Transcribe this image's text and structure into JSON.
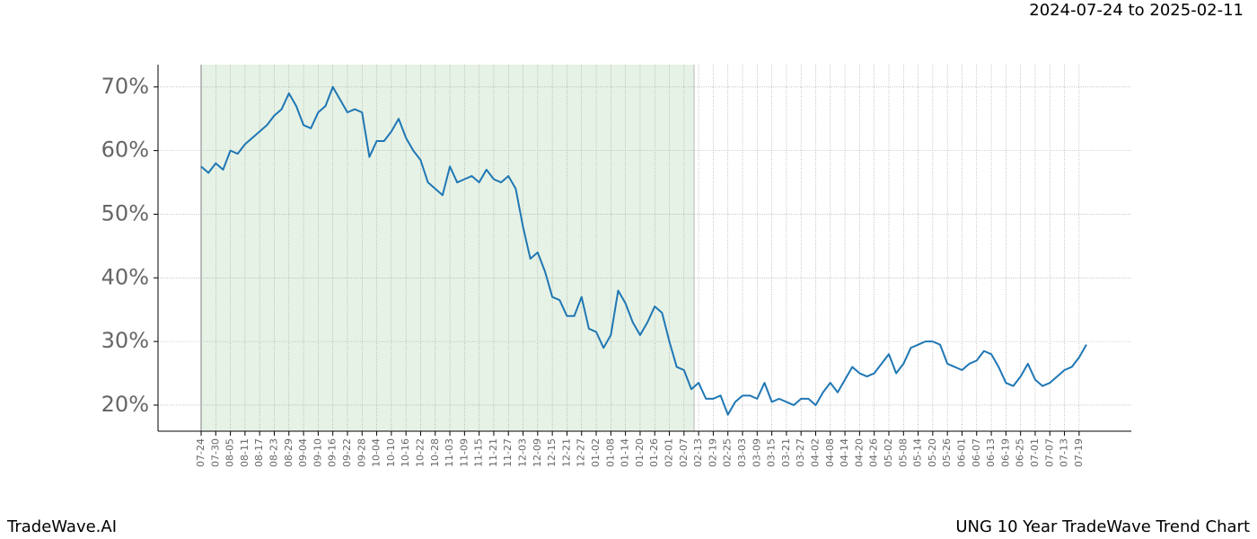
{
  "chart_data": {
    "type": "line",
    "title": "UNG 10 Year TradeWave Trend Chart",
    "subtitle": "2024-07-24 to 2025-02-11",
    "brand": "TradeWave.AI",
    "categories": [
      "07-24",
      null,
      "07-30",
      null,
      "08-05",
      null,
      "08-11",
      null,
      "08-17",
      null,
      "08-23",
      null,
      "08-29",
      null,
      "09-04",
      null,
      "09-10",
      null,
      "09-16",
      null,
      "09-22",
      null,
      "09-28",
      null,
      "10-04",
      null,
      "10-10",
      null,
      "10-16",
      null,
      "10-22",
      null,
      "10-28",
      null,
      "11-03",
      null,
      "11-09",
      null,
      "11-15",
      null,
      "11-21",
      null,
      "11-27",
      null,
      "12-03",
      null,
      "12-09",
      null,
      "12-15",
      null,
      "12-21",
      null,
      "12-27",
      null,
      "01-02",
      null,
      "01-08",
      null,
      "01-14",
      null,
      "01-20",
      null,
      "01-26",
      null,
      "02-01",
      null,
      "02-07",
      null,
      "02-13",
      null,
      "02-19",
      null,
      "02-25",
      null,
      "03-03",
      null,
      "03-09",
      null,
      "03-15",
      null,
      "03-21",
      null,
      "03-27",
      null,
      "04-02",
      null,
      "04-08",
      null,
      "04-14",
      null,
      "04-20",
      null,
      "04-26",
      null,
      "05-02",
      null,
      "05-08",
      null,
      "05-14",
      null,
      "05-20",
      null,
      "05-26",
      null,
      "06-01",
      null,
      "06-07",
      null,
      "06-13",
      null,
      "06-19",
      null,
      "06-25",
      null,
      "07-01",
      null,
      "07-07",
      null,
      "07-13",
      null,
      "07-19",
      null
    ],
    "series": [
      {
        "color": "#1f77b4",
        "values": [
          57.5,
          56.5,
          58,
          57,
          60,
          59.5,
          61,
          62,
          63,
          64,
          65.5,
          66.5,
          69,
          67,
          64,
          63.5,
          66,
          67,
          70,
          68,
          66,
          66.5,
          66,
          59,
          61.5,
          61.5,
          63,
          65,
          62,
          60,
          58.5,
          55,
          54,
          53,
          57.5,
          55,
          55.5,
          56,
          55,
          57,
          55.5,
          55,
          56,
          54,
          48,
          43,
          44,
          41,
          37,
          36.5,
          34,
          34,
          37,
          32,
          31.5,
          29,
          31,
          38,
          36,
          33,
          31,
          33,
          35.5,
          34.5,
          30,
          26,
          25.5,
          22.5,
          23.5,
          21,
          21,
          21.5,
          18.5,
          20.5,
          21.5,
          21.5,
          21,
          23.5,
          20.5,
          21,
          20.5,
          20,
          21,
          21,
          20,
          22,
          23.5,
          22,
          24,
          26,
          25,
          24.5,
          25,
          26.5,
          28,
          25,
          26.5,
          29,
          29.5,
          30,
          30,
          29.5,
          26.5,
          26,
          25.5,
          26.5,
          27,
          28.5,
          28,
          26,
          23.5,
          23,
          24.5,
          26.5,
          24,
          23,
          23.5,
          24.5,
          25.5,
          26,
          27.5,
          29.5
        ]
      }
    ],
    "ylim": [
      15.9,
      73.5
    ],
    "yticks": [
      {
        "value": 20,
        "label": "20%"
      },
      {
        "value": 30,
        "label": "30%"
      },
      {
        "value": 40,
        "label": "40%"
      },
      {
        "value": 50,
        "label": "50%"
      },
      {
        "value": 60,
        "label": "60%"
      },
      {
        "value": 70,
        "label": "70%"
      }
    ],
    "grid": true
  }
}
